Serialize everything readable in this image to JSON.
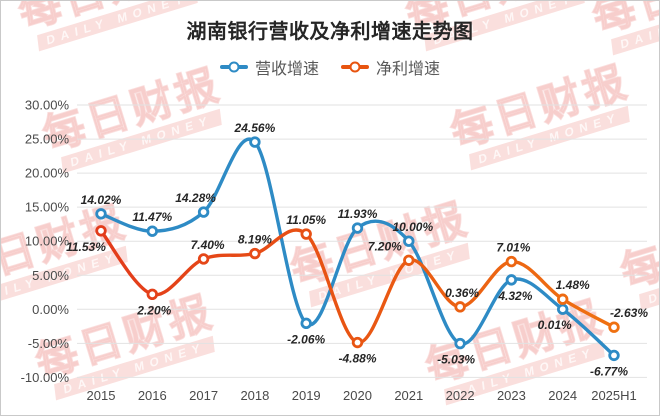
{
  "page": {
    "background": "#ffffff",
    "border_color": "#c9c9c9"
  },
  "watermark": {
    "cn": "每日财报",
    "en": "DAILY MONEY"
  },
  "chart_data": {
    "type": "line",
    "title": "湖南银行营收及净利增速走势图",
    "categories": [
      "2015",
      "2016",
      "2017",
      "2018",
      "2019",
      "2020",
      "2021",
      "2022",
      "2023",
      "2024",
      "2025H1"
    ],
    "y_ticks": [
      "30.00%",
      "25.00%",
      "20.00%",
      "15.00%",
      "10.00%",
      "5.00%",
      "0.00%",
      "-5.00%",
      "-10.00%"
    ],
    "ylim": [
      -10,
      30
    ],
    "grid": true,
    "legend_position": "top",
    "value_suffix": "%",
    "series": [
      {
        "name": "营收增速",
        "color": "#2E8BC5",
        "values": [
          14.02,
          11.47,
          14.28,
          24.56,
          -2.06,
          11.93,
          10.0,
          -5.03,
          4.32,
          0.01,
          -6.77
        ],
        "label_side": [
          "above",
          "above",
          "above",
          "above",
          "below",
          "above",
          "above",
          "below",
          "below",
          "below",
          "below"
        ],
        "label_dx": [
          0,
          0,
          -8,
          0,
          0,
          0,
          4,
          -4,
          4,
          -8,
          -5
        ]
      },
      {
        "name": "净利增速",
        "color": "#E8540F",
        "gradient": [
          "#E2391C",
          "#E85313",
          "#F07411"
        ],
        "values": [
          11.53,
          2.2,
          7.4,
          8.19,
          11.05,
          -4.88,
          7.2,
          0.36,
          7.01,
          1.48,
          -2.63
        ],
        "label_side": [
          "below",
          "below",
          "above",
          "above",
          "above",
          "below",
          "above",
          "above",
          "above",
          "above",
          "above"
        ],
        "label_dx": [
          -15,
          2,
          4,
          0,
          0,
          0,
          -24,
          2,
          2,
          10,
          15
        ]
      }
    ]
  }
}
